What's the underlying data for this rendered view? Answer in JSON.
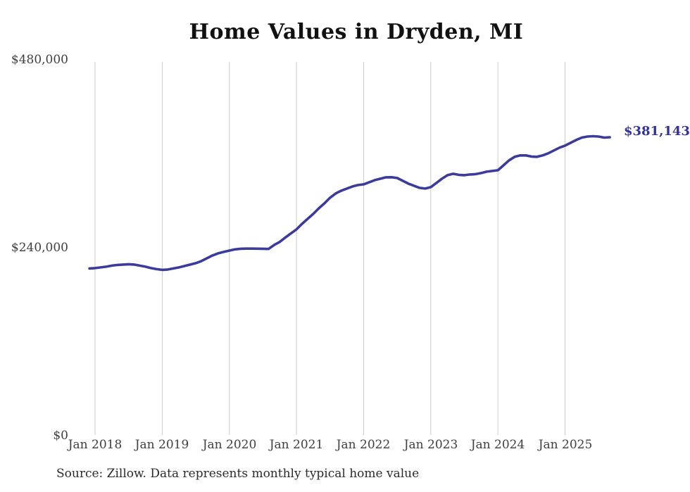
{
  "chart_data": {
    "type": "line",
    "title": "Home Values in Dryden, MI",
    "source": "Source: Zillow. Data represents monthly typical home value",
    "end_label": "$381,143",
    "final_value": 381143,
    "ylim": [
      0,
      480000
    ],
    "grid": "vertical-only",
    "legend_position": "none",
    "colors": {
      "line": "#3b3a9d",
      "end_label": "#31319b",
      "gridline": "#cccccc",
      "tick_text": "#3f3f3f",
      "title_text": "#111111",
      "source_text": "#2b2b2b",
      "background": "#ffffff"
    },
    "y_ticks": [
      {
        "label": "$0",
        "value": 0
      },
      {
        "label": "$240,000",
        "value": 240000
      },
      {
        "label": "$480,000",
        "value": 480000
      }
    ],
    "x_ticks": [
      {
        "label": "Jan 2018",
        "month_index": 1
      },
      {
        "label": "Jan 2019",
        "month_index": 13
      },
      {
        "label": "Jan 2020",
        "month_index": 25
      },
      {
        "label": "Jan 2021",
        "month_index": 37
      },
      {
        "label": "Jan 2022",
        "month_index": 49
      },
      {
        "label": "Jan 2023",
        "month_index": 61
      },
      {
        "label": "Jan 2024",
        "month_index": 73
      },
      {
        "label": "Jan 2025",
        "month_index": 85
      }
    ],
    "series": [
      {
        "name": "Monthly typical home value",
        "months": [
          "2017-12",
          "2018-01",
          "2018-02",
          "2018-03",
          "2018-04",
          "2018-05",
          "2018-06",
          "2018-07",
          "2018-08",
          "2018-09",
          "2018-10",
          "2018-11",
          "2018-12",
          "2019-01",
          "2019-02",
          "2019-03",
          "2019-04",
          "2019-05",
          "2019-06",
          "2019-07",
          "2019-08",
          "2019-09",
          "2019-10",
          "2019-11",
          "2019-12",
          "2020-01",
          "2020-02",
          "2020-03",
          "2020-04",
          "2020-05",
          "2020-06",
          "2020-07",
          "2020-08",
          "2020-09",
          "2020-10",
          "2020-11",
          "2020-12",
          "2021-01",
          "2021-02",
          "2021-03",
          "2021-04",
          "2021-05",
          "2021-06",
          "2021-07",
          "2021-08",
          "2021-09",
          "2021-10",
          "2021-11",
          "2021-12",
          "2022-01",
          "2022-02",
          "2022-03",
          "2022-04",
          "2022-05",
          "2022-06",
          "2022-07",
          "2022-08",
          "2022-09",
          "2022-10",
          "2022-11",
          "2022-12",
          "2023-01",
          "2023-02",
          "2023-03",
          "2023-04",
          "2023-05",
          "2023-06",
          "2023-07",
          "2023-08",
          "2023-09",
          "2023-10",
          "2023-11",
          "2023-12",
          "2024-01",
          "2024-02",
          "2024-03",
          "2024-04",
          "2024-05",
          "2024-06",
          "2024-07",
          "2024-08",
          "2024-09",
          "2024-10",
          "2024-11",
          "2024-12",
          "2025-01",
          "2025-02",
          "2025-03",
          "2025-04",
          "2025-05",
          "2025-06",
          "2025-07",
          "2025-08",
          "2025-09"
        ],
        "values": [
          213600,
          214000,
          214900,
          215800,
          217200,
          218100,
          218500,
          219000,
          218500,
          217200,
          215800,
          214000,
          212700,
          211800,
          212200,
          213600,
          214900,
          216700,
          218500,
          220300,
          223000,
          226600,
          230200,
          232900,
          234700,
          236400,
          237900,
          238700,
          238900,
          238900,
          238800,
          238700,
          238500,
          243500,
          247500,
          253000,
          258300,
          263500,
          270600,
          276900,
          283200,
          290400,
          296700,
          303900,
          309300,
          312900,
          315600,
          318300,
          320100,
          321000,
          323700,
          326400,
          328200,
          330000,
          330100,
          329100,
          325500,
          321900,
          319200,
          316500,
          315600,
          317400,
          322800,
          328200,
          332700,
          334500,
          333100,
          332700,
          333600,
          334000,
          335400,
          337200,
          338100,
          339000,
          345300,
          351600,
          356100,
          357900,
          357900,
          356500,
          356100,
          357900,
          360600,
          364200,
          367800,
          370400,
          374000,
          377600,
          380700,
          382000,
          382500,
          382000,
          380700,
          381143
        ]
      }
    ]
  }
}
